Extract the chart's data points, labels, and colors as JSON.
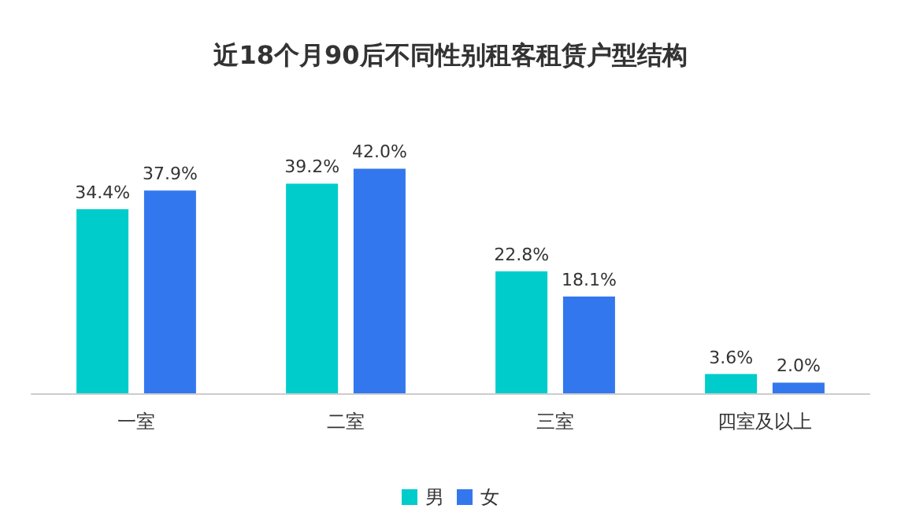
{
  "chart_data": {
    "type": "bar",
    "title": "近18个月90后不同性别租客租赁户型结构",
    "categories": [
      "一室",
      "二室",
      "三室",
      "四室及以上"
    ],
    "series": [
      {
        "name": "男",
        "color": "#00cccc",
        "values": [
          34.4,
          39.2,
          22.8,
          3.6
        ],
        "value_labels": [
          "34.4%",
          "39.2%",
          "22.8%",
          "3.6%"
        ]
      },
      {
        "name": "女",
        "color": "#3377ee",
        "values": [
          37.9,
          42.0,
          18.1,
          2.0
        ],
        "value_labels": [
          "37.9%",
          "42.0%",
          "18.1%",
          "2.0%"
        ]
      }
    ],
    "legend": "bottom"
  }
}
